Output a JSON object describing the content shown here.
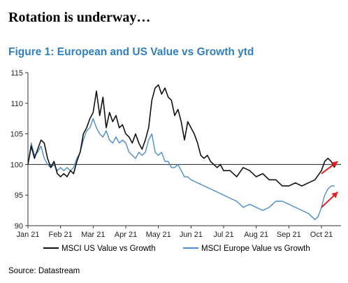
{
  "headline": "Rotation is underway…",
  "source": "Source: Datastream",
  "colors": {
    "us": "#111111",
    "europe": "#4a8cc9",
    "arrow": "#e02020",
    "title": "#2f7fc1"
  },
  "chart_data": {
    "type": "line",
    "title": "Figure 1: European and US Value vs Growth ytd",
    "xlabel": "",
    "ylabel": "",
    "ylim": [
      90,
      115
    ],
    "yticks": [
      90,
      95,
      100,
      105,
      110,
      115
    ],
    "xlim": [
      0,
      9.6
    ],
    "xticks": [
      {
        "label": "Jan 21",
        "value": 0
      },
      {
        "label": "Feb 21",
        "value": 1
      },
      {
        "label": "Mar 21",
        "value": 2
      },
      {
        "label": "Apr 21",
        "value": 3
      },
      {
        "label": "May 21",
        "value": 4
      },
      {
        "label": "Jun 21",
        "value": 5
      },
      {
        "label": "Jul 21",
        "value": 6
      },
      {
        "label": "Aug 21",
        "value": 7
      },
      {
        "label": "Sep 21",
        "value": 8
      },
      {
        "label": "Oct 21",
        "value": 9
      }
    ],
    "reference_line": 100,
    "legend_position": "bottom",
    "series": [
      {
        "name": "MSCI US Value vs Growth",
        "x": [
          0,
          0.1,
          0.2,
          0.3,
          0.4,
          0.5,
          0.6,
          0.7,
          0.8,
          0.9,
          1.0,
          1.1,
          1.2,
          1.3,
          1.4,
          1.5,
          1.6,
          1.7,
          1.8,
          1.9,
          2.0,
          2.1,
          2.2,
          2.3,
          2.4,
          2.5,
          2.6,
          2.7,
          2.8,
          2.9,
          3.0,
          3.1,
          3.2,
          3.3,
          3.4,
          3.5,
          3.6,
          3.7,
          3.8,
          3.9,
          4.0,
          4.1,
          4.2,
          4.3,
          4.4,
          4.5,
          4.6,
          4.7,
          4.8,
          4.9,
          5.0,
          5.1,
          5.2,
          5.3,
          5.4,
          5.5,
          5.6,
          5.7,
          5.8,
          5.9,
          6.0,
          6.2,
          6.4,
          6.6,
          6.8,
          7.0,
          7.2,
          7.4,
          7.6,
          7.8,
          8.0,
          8.2,
          8.4,
          8.6,
          8.8,
          9.0,
          9.1,
          9.2,
          9.3,
          9.4
        ],
        "values": [
          100.0,
          103.0,
          101.0,
          102.5,
          104.0,
          103.5,
          101.0,
          99.5,
          100.5,
          98.5,
          98.0,
          98.5,
          98.0,
          99.0,
          98.5,
          100.5,
          102.0,
          105.0,
          106.0,
          107.5,
          108.5,
          112.0,
          108.0,
          111.0,
          106.0,
          108.5,
          107.0,
          108.0,
          106.0,
          106.5,
          105.0,
          104.5,
          103.5,
          105.0,
          103.5,
          102.5,
          104.0,
          106.0,
          110.5,
          112.5,
          113.0,
          111.5,
          112.5,
          111.0,
          110.5,
          108.0,
          109.0,
          107.0,
          104.0,
          107.0,
          106.0,
          105.0,
          103.5,
          101.5,
          101.0,
          101.5,
          100.5,
          100.0,
          99.5,
          100.0,
          99.0,
          99.0,
          98.0,
          99.5,
          99.0,
          98.0,
          98.5,
          97.5,
          97.5,
          96.5,
          96.5,
          97.0,
          96.5,
          97.0,
          97.5,
          99.0,
          100.5,
          101.0,
          100.5,
          99.5
        ]
      },
      {
        "name": "MSCI Europe Value vs Growth",
        "x": [
          0,
          0.1,
          0.2,
          0.3,
          0.4,
          0.5,
          0.6,
          0.7,
          0.8,
          0.9,
          1.0,
          1.1,
          1.2,
          1.3,
          1.4,
          1.5,
          1.6,
          1.7,
          1.8,
          1.9,
          2.0,
          2.1,
          2.2,
          2.3,
          2.4,
          2.5,
          2.6,
          2.7,
          2.8,
          2.9,
          3.0,
          3.1,
          3.2,
          3.3,
          3.4,
          3.5,
          3.6,
          3.7,
          3.8,
          3.9,
          4.0,
          4.1,
          4.2,
          4.3,
          4.4,
          4.5,
          4.6,
          4.7,
          4.8,
          4.9,
          5.0,
          5.2,
          5.4,
          5.6,
          5.8,
          6.0,
          6.2,
          6.4,
          6.6,
          6.8,
          7.0,
          7.2,
          7.4,
          7.6,
          7.8,
          8.0,
          8.2,
          8.4,
          8.6,
          8.8,
          8.9,
          9.0,
          9.1,
          9.2,
          9.3,
          9.4
        ],
        "values": [
          100.0,
          103.5,
          101.5,
          102.0,
          103.0,
          101.0,
          100.0,
          99.5,
          100.0,
          99.0,
          99.5,
          99.0,
          99.5,
          99.0,
          99.5,
          101.0,
          102.0,
          104.0,
          105.5,
          106.0,
          107.5,
          106.0,
          105.0,
          104.5,
          105.5,
          104.0,
          103.5,
          104.5,
          103.5,
          104.0,
          103.5,
          102.0,
          101.5,
          101.0,
          102.0,
          101.5,
          102.0,
          104.0,
          105.0,
          102.0,
          101.5,
          102.0,
          100.5,
          100.5,
          99.5,
          99.5,
          100.0,
          99.0,
          98.0,
          98.0,
          97.5,
          97.0,
          96.5,
          96.0,
          95.5,
          95.0,
          94.5,
          94.0,
          93.0,
          93.5,
          93.0,
          92.5,
          93.0,
          94.0,
          94.0,
          93.5,
          93.0,
          92.5,
          92.0,
          91.0,
          91.5,
          93.0,
          95.0,
          96.0,
          96.5,
          96.5
        ]
      }
    ],
    "annotations": [
      {
        "type": "arrow",
        "from": [
          9.0,
          98.5
        ],
        "to": [
          9.5,
          100.5
        ]
      },
      {
        "type": "arrow",
        "from": [
          9.0,
          93.0
        ],
        "to": [
          9.5,
          95.5
        ]
      }
    ]
  }
}
